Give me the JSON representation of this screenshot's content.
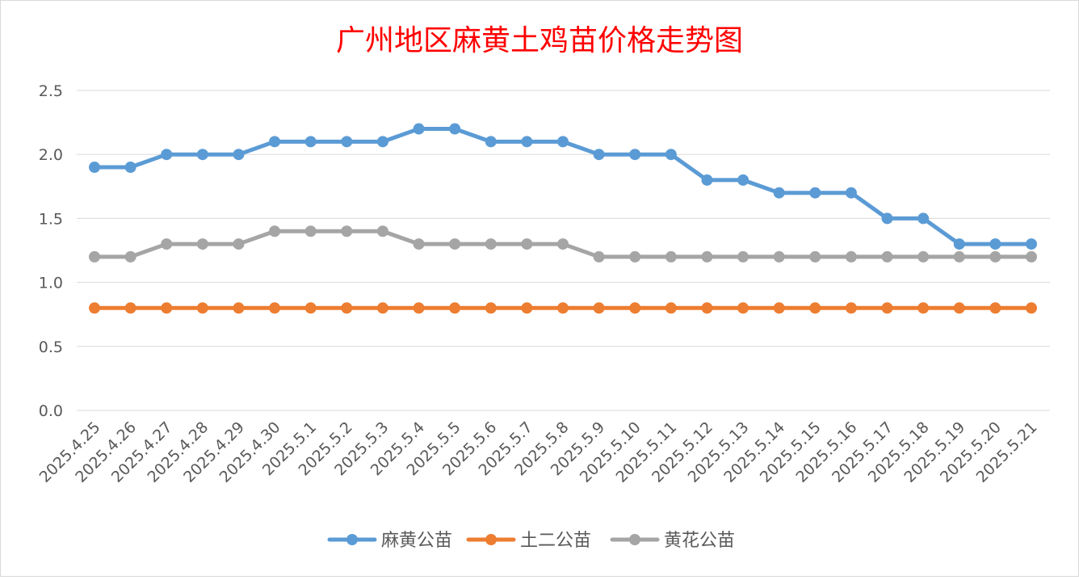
{
  "chart_data": {
    "type": "line",
    "title": "广州地区麻黄土鸡苗价格走势图",
    "xlabel": "",
    "ylabel": "",
    "ylim": [
      0,
      2.5
    ],
    "yticks": [
      "0.0",
      "0.5",
      "1.0",
      "1.5",
      "2.0",
      "2.5"
    ],
    "grid": true,
    "legend_position": "bottom",
    "categories": [
      "2025.4.25",
      "2025.4.26",
      "2025.4.27",
      "2025.4.28",
      "2025.4.29",
      "2025.4.30",
      "2025.5.1",
      "2025.5.2",
      "2025.5.3",
      "2025.5.4",
      "2025.5.5",
      "2025.5.6",
      "2025.5.7",
      "2025.5.8",
      "2025.5.9",
      "2025.5.10",
      "2025.5.11",
      "2025.5.12",
      "2025.5.13",
      "2025.5.14",
      "2025.5.15",
      "2025.5.16",
      "2025.5.17",
      "2025.5.18",
      "2025.5.19",
      "2025.5.20",
      "2025.5.21"
    ],
    "series": [
      {
        "name": "麻黄公苗",
        "color": "#5b9bd5",
        "values": [
          1.9,
          1.9,
          2.0,
          2.0,
          2.0,
          2.1,
          2.1,
          2.1,
          2.1,
          2.2,
          2.2,
          2.1,
          2.1,
          2.1,
          2.0,
          2.0,
          2.0,
          1.8,
          1.8,
          1.7,
          1.7,
          1.7,
          1.5,
          1.5,
          1.3,
          1.3,
          1.3
        ]
      },
      {
        "name": "土二公苗",
        "color": "#ed7d31",
        "values": [
          0.8,
          0.8,
          0.8,
          0.8,
          0.8,
          0.8,
          0.8,
          0.8,
          0.8,
          0.8,
          0.8,
          0.8,
          0.8,
          0.8,
          0.8,
          0.8,
          0.8,
          0.8,
          0.8,
          0.8,
          0.8,
          0.8,
          0.8,
          0.8,
          0.8,
          0.8,
          0.8
        ]
      },
      {
        "name": "黄花公苗",
        "color": "#a5a5a5",
        "values": [
          1.2,
          1.2,
          1.3,
          1.3,
          1.3,
          1.4,
          1.4,
          1.4,
          1.4,
          1.3,
          1.3,
          1.3,
          1.3,
          1.3,
          1.2,
          1.2,
          1.2,
          1.2,
          1.2,
          1.2,
          1.2,
          1.2,
          1.2,
          1.2,
          1.2,
          1.2,
          1.2
        ]
      }
    ]
  },
  "colors": {
    "title": "#ff0000",
    "grid": "#d9d9d9",
    "text": "#595959",
    "border": "#d9d9d9"
  }
}
